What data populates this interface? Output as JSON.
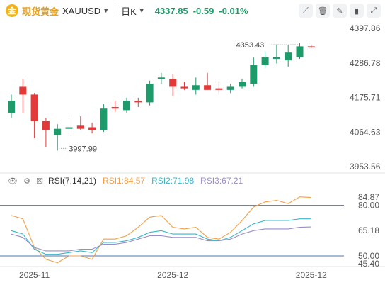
{
  "header": {
    "name": "现货黄金",
    "symbol": "XAUUSD",
    "period": "日K",
    "price": "4337.85",
    "change": "-0.59",
    "change_pct": "-0.01%",
    "tool_icons": [
      "draw-line-icon",
      "trash-icon",
      "pen-icon",
      "bar-chart-icon",
      "expand-icon"
    ]
  },
  "rsi_header": {
    "name": "RSI(7,14,21)",
    "rsi1": "RSI1:84.57",
    "rsi2": "RSI2:71.98",
    "rsi3": "RSI3:67.21"
  },
  "colors": {
    "up": "#1e9b6a",
    "down": "#e23a3a",
    "rsi1": "#f0a04b",
    "rsi2": "#36b7c9",
    "rsi3": "#9b8cc9",
    "level": "#4a78b0"
  },
  "chart_data": {
    "type": "candlestick",
    "price_ticks": [
      "4397.86",
      "4286.78",
      "4175.71",
      "4064.63",
      "3953.56"
    ],
    "price_range": [
      3953.56,
      4397.86
    ],
    "high_label": "4353.43",
    "low_label": "3997.99",
    "x_labels": [
      {
        "label": "2025-11",
        "index": 2
      },
      {
        "label": "2025-12",
        "index": 14
      },
      {
        "label": "2025-12",
        "index": 26
      }
    ],
    "candles": [
      {
        "o": 4125,
        "h": 4185,
        "l": 4110,
        "c": 4165
      },
      {
        "o": 4210,
        "h": 4235,
        "l": 4125,
        "c": 4185
      },
      {
        "o": 4185,
        "h": 4190,
        "l": 4045,
        "c": 4100
      },
      {
        "o": 4100,
        "h": 4110,
        "l": 4015,
        "c": 4070
      },
      {
        "o": 4055,
        "h": 4090,
        "l": 4005,
        "c": 4075
      },
      {
        "o": 4075,
        "h": 4110,
        "l": 4060,
        "c": 4080
      },
      {
        "o": 4085,
        "h": 4115,
        "l": 4070,
        "c": 4075
      },
      {
        "o": 4080,
        "h": 4095,
        "l": 4060,
        "c": 4070
      },
      {
        "o": 4070,
        "h": 4155,
        "l": 4065,
        "c": 4140
      },
      {
        "o": 4145,
        "h": 4165,
        "l": 4130,
        "c": 4140
      },
      {
        "o": 4135,
        "h": 4175,
        "l": 4125,
        "c": 4165
      },
      {
        "o": 4165,
        "h": 4175,
        "l": 4145,
        "c": 4160
      },
      {
        "o": 4160,
        "h": 4230,
        "l": 4150,
        "c": 4220
      },
      {
        "o": 4235,
        "h": 4255,
        "l": 4220,
        "c": 4240
      },
      {
        "o": 4235,
        "h": 4250,
        "l": 4180,
        "c": 4210
      },
      {
        "o": 4210,
        "h": 4225,
        "l": 4200,
        "c": 4205
      },
      {
        "o": 4200,
        "h": 4240,
        "l": 4185,
        "c": 4215
      },
      {
        "o": 4215,
        "h": 4255,
        "l": 4200,
        "c": 4200
      },
      {
        "o": 4205,
        "h": 4225,
        "l": 4185,
        "c": 4200
      },
      {
        "o": 4200,
        "h": 4220,
        "l": 4190,
        "c": 4210
      },
      {
        "o": 4210,
        "h": 4235,
        "l": 4205,
        "c": 4225
      },
      {
        "o": 4220,
        "h": 4305,
        "l": 4210,
        "c": 4280
      },
      {
        "o": 4280,
        "h": 4320,
        "l": 4270,
        "c": 4305
      },
      {
        "o": 4300,
        "h": 4345,
        "l": 4285,
        "c": 4305
      },
      {
        "o": 4295,
        "h": 4345,
        "l": 4275,
        "c": 4320
      },
      {
        "o": 4305,
        "h": 4350,
        "l": 4300,
        "c": 4340
      },
      {
        "o": 4340,
        "h": 4345,
        "l": 4335,
        "c": 4338
      }
    ],
    "rsi_ticks": [
      "84.87",
      "80.00",
      "65.18",
      "50.00",
      "45.40"
    ],
    "rsi_range": [
      45.4,
      84.87
    ],
    "rsi_levels": [
      80,
      50
    ],
    "series": [
      {
        "name": "RSI1",
        "values": [
          74,
          72,
          55,
          48,
          46,
          50,
          50,
          48,
          60,
          60,
          62,
          67,
          73,
          74,
          67,
          66,
          67,
          61,
          60,
          64,
          71,
          79,
          82,
          83,
          81,
          85,
          84.6
        ]
      },
      {
        "name": "RSI2",
        "values": [
          65,
          63,
          54,
          51,
          51,
          52,
          53,
          52,
          58,
          58,
          59,
          61,
          64,
          65,
          63,
          63,
          63,
          60,
          59,
          61,
          65,
          69,
          71,
          71,
          71,
          72,
          72
        ]
      },
      {
        "name": "RSI3",
        "values": [
          63,
          61,
          55,
          53,
          53,
          53,
          54,
          54,
          57,
          57,
          58,
          60,
          62,
          62,
          61,
          61,
          61,
          59,
          59,
          60,
          63,
          65,
          66,
          66,
          66,
          67,
          67.2
        ]
      }
    ]
  }
}
